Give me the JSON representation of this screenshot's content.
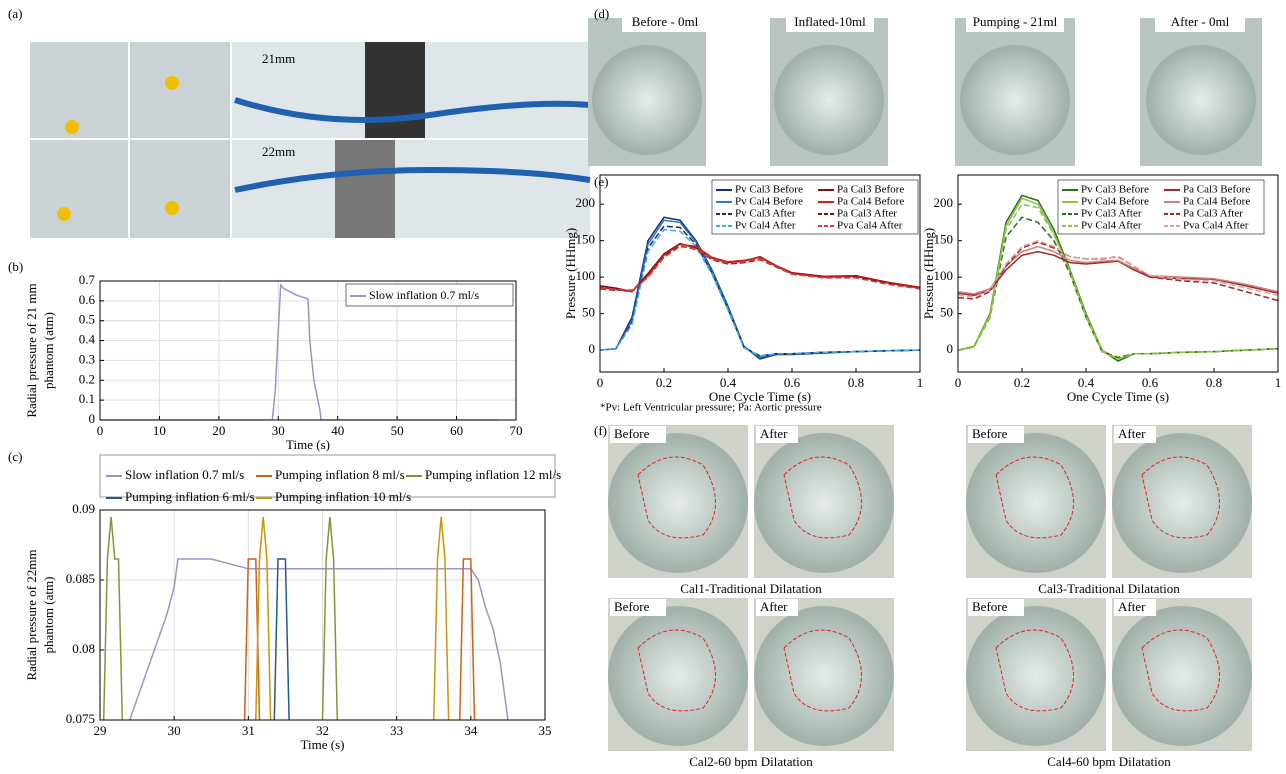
{
  "panel_labels": [
    "(a)",
    "(b)",
    "(c)",
    "(d)",
    "(e)",
    "(f)"
  ],
  "panel_a": {
    "labels": [
      "21mm",
      "22mm"
    ]
  },
  "panel_d": {
    "photo_labels": [
      "Before - 0ml",
      "Inflated-10ml",
      "Pumping - 21ml",
      "After - 0ml"
    ]
  },
  "panel_f": {
    "photo_labels": [
      "Before",
      "After"
    ],
    "captions": [
      "Cal1-Traditional Dilatation",
      "Cal3-Traditional Dilatation",
      "Cal2-60 bpm Dilatation",
      "Cal4-60 bpm Dilatation"
    ]
  },
  "footnote": "*Pv: Left Ventricular pressure; Pa: Aortic pressure",
  "chart_data": [
    {
      "type": "line",
      "xlabel": "Time (s)",
      "ylabel": [
        "Radial pressure of 21 mm",
        "phantom (atm)"
      ],
      "xlim": [
        0,
        70
      ],
      "xticks": [
        0,
        10,
        20,
        30,
        40,
        50,
        60,
        70
      ],
      "ylim": [
        0,
        0.7
      ],
      "yticks": [
        0,
        0.1,
        0.2,
        0.3,
        0.4,
        0.5,
        0.6,
        0.7
      ],
      "grid": true,
      "legend": "upper right",
      "legend_columns": 1,
      "series": [
        {
          "name": "Slow inflation 0.7 ml/s",
          "color": "#a48fcc",
          "x": [
            0,
            29,
            29.5,
            30,
            30.4,
            31,
            33,
            35,
            35.3,
            36,
            37,
            37.2,
            67
          ],
          "values": [
            0,
            0,
            0.15,
            0.45,
            0.68,
            0.66,
            0.63,
            0.61,
            0.4,
            0.2,
            0.05,
            0,
            0
          ]
        }
      ]
    },
    {
      "type": "line",
      "xlabel": "Time (s)",
      "ylabel": [
        "Radial pressure of 22mm",
        "phantom (atm)"
      ],
      "xlim": [
        29,
        35
      ],
      "xticks": [
        29,
        30,
        31,
        32,
        33,
        34,
        35
      ],
      "ylim": [
        0.075,
        0.09
      ],
      "yticks": [
        0.075,
        0.08,
        0.085,
        0.09
      ],
      "grid": true,
      "legend": "top",
      "legend_columns": 3,
      "series": [
        {
          "name": "Slow inflation 0.7 ml/s",
          "color": "#a48fcc",
          "x": [
            29.4,
            29.5,
            29.6,
            29.7,
            29.8,
            29.9,
            30,
            30.05,
            30.5,
            31,
            31.5,
            32,
            33,
            34,
            34.1,
            34.2,
            34.3,
            34.4,
            34.5
          ],
          "values": [
            0.075,
            0.0765,
            0.078,
            0.0795,
            0.081,
            0.0825,
            0.0845,
            0.0865,
            0.0865,
            0.0858,
            0.0858,
            0.0858,
            0.0858,
            0.0858,
            0.085,
            0.083,
            0.0815,
            0.079,
            0.075
          ]
        },
        {
          "name": "Pumping inflation 8 ml/s",
          "color": "#c8641e",
          "x": [
            30.95,
            31,
            31.05,
            31.1,
            31.15,
            null,
            33.85,
            33.9,
            33.95,
            34,
            34.05
          ],
          "values": [
            0.075,
            0.0865,
            0.0865,
            0.0865,
            0.075,
            null,
            0.075,
            0.0865,
            0.0865,
            0.0865,
            0.075
          ]
        },
        {
          "name": "Pumping inflation 12 ml/s",
          "color": "#7a9a3a",
          "x": [
            29.05,
            29.1,
            29.15,
            29.2,
            29.25,
            29.3,
            null,
            32,
            32.05,
            32.1,
            32.15,
            32.2
          ],
          "values": [
            0.075,
            0.0865,
            0.0895,
            0.0865,
            0.0865,
            0.075,
            null,
            0.075,
            0.0865,
            0.0895,
            0.0865,
            0.075
          ]
        },
        {
          "name": "Pumping inflation 6 ml/s",
          "color": "#1f5f80",
          "x": [
            31.35,
            31.4,
            31.45,
            31.5,
            31.55
          ],
          "values": [
            0.075,
            0.0865,
            0.0865,
            0.0865,
            0.075
          ]
        },
        {
          "name": "Pumping inflation 10 ml/s",
          "color": "#c8960a",
          "x": [
            31.1,
            31.15,
            31.2,
            31.25,
            31.3,
            null,
            33.5,
            33.55,
            33.6,
            33.65,
            33.7
          ],
          "values": [
            0.075,
            0.0865,
            0.0895,
            0.0865,
            0.075,
            null,
            0.075,
            0.0865,
            0.0895,
            0.0865,
            0.075
          ]
        }
      ]
    },
    {
      "type": "line",
      "xlabel": "One Cycle Time (s)",
      "ylabel": "Pressure (HHmg)",
      "xlim": [
        0,
        1
      ],
      "xticks": [
        0,
        0.2,
        0.4,
        0.6,
        0.8,
        1
      ],
      "ylim": [
        -30,
        240
      ],
      "yticks": [
        0,
        50,
        100,
        150,
        200
      ],
      "grid": false,
      "legend": "upper right",
      "legend_columns": 2,
      "x": [
        0,
        0.05,
        0.1,
        0.15,
        0.2,
        0.25,
        0.3,
        0.35,
        0.4,
        0.45,
        0.5,
        0.55,
        0.6,
        0.7,
        0.8,
        0.9,
        1
      ],
      "series": [
        {
          "name": "Pv Cal3 Before",
          "color": "#1a2a6c",
          "dash": false,
          "values": [
            0,
            2,
            45,
            150,
            182,
            178,
            150,
            110,
            60,
            5,
            -12,
            -6,
            -6,
            -4,
            -2,
            -1,
            0
          ]
        },
        {
          "name": "Pv Cal4 Before",
          "color": "#2a7ad0",
          "dash": false,
          "values": [
            0,
            2,
            40,
            145,
            178,
            175,
            148,
            108,
            58,
            4,
            -10,
            -5,
            -5,
            -3,
            -2,
            -1,
            0
          ]
        },
        {
          "name": "Pv Cal3 After",
          "color": "#1a2a6c",
          "dash": true,
          "values": [
            0,
            2,
            38,
            140,
            170,
            168,
            145,
            106,
            56,
            4,
            -8,
            -5,
            -5,
            -3,
            -2,
            -1,
            0
          ]
        },
        {
          "name": "Pv Cal4 After",
          "color": "#3ab0e0",
          "dash": true,
          "values": [
            0,
            2,
            35,
            135,
            165,
            163,
            142,
            104,
            55,
            3,
            -8,
            -5,
            -5,
            -3,
            -2,
            -1,
            0
          ]
        },
        {
          "name": "Pa Cal3 Before",
          "color": "#7a1010",
          "dash": false,
          "values": [
            88,
            85,
            80,
            105,
            132,
            146,
            140,
            126,
            120,
            122,
            128,
            116,
            106,
            101,
            102,
            93,
            86
          ]
        },
        {
          "name": "Pa Cal4 Before",
          "color": "#d02020",
          "dash": false,
          "values": [
            86,
            83,
            80,
            102,
            130,
            145,
            142,
            127,
            121,
            123,
            127,
            115,
            105,
            100,
            101,
            92,
            85
          ]
        },
        {
          "name": "Pa Cal3 After",
          "color": "#7a1010",
          "dash": true,
          "values": [
            84,
            82,
            82,
            100,
            128,
            143,
            138,
            124,
            118,
            120,
            124,
            114,
            104,
            99,
            100,
            91,
            84
          ]
        },
        {
          "name": "Pva Cal4 After",
          "color": "#d84040",
          "dash": true,
          "values": [
            85,
            83,
            81,
            100,
            127,
            142,
            139,
            125,
            119,
            121,
            125,
            115,
            104,
            99,
            99,
            90,
            84
          ]
        }
      ]
    },
    {
      "type": "line",
      "xlabel": "One Cycle Time (s)",
      "ylabel": "Pressure (HHmg)",
      "xlim": [
        0,
        1
      ],
      "xticks": [
        0,
        0.2,
        0.4,
        0.6,
        0.8,
        1
      ],
      "ylim": [
        -30,
        240
      ],
      "yticks": [
        0,
        50,
        100,
        150,
        200
      ],
      "grid": false,
      "legend": "upper right",
      "legend_columns": 2,
      "x": [
        0,
        0.05,
        0.1,
        0.15,
        0.2,
        0.25,
        0.3,
        0.35,
        0.4,
        0.45,
        0.5,
        0.55,
        0.6,
        0.7,
        0.8,
        0.9,
        1
      ],
      "series": [
        {
          "name": "Pv Cal3 Before",
          "color": "#2e6b1e",
          "dash": false,
          "values": [
            0,
            5,
            50,
            175,
            212,
            205,
            165,
            110,
            50,
            0,
            -15,
            -5,
            -5,
            -3,
            -2,
            0,
            2
          ]
        },
        {
          "name": "Pv Cal4 Before",
          "color": "#8cc63f",
          "dash": false,
          "values": [
            0,
            5,
            48,
            170,
            208,
            200,
            160,
            108,
            48,
            0,
            -12,
            -5,
            -5,
            -3,
            -2,
            0,
            2
          ]
        },
        {
          "name": "Pv Cal3 After",
          "color": "#2e6b1e",
          "dash": true,
          "values": [
            0,
            4,
            45,
            155,
            182,
            175,
            150,
            105,
            45,
            -2,
            -10,
            -5,
            -5,
            -3,
            -2,
            0,
            2
          ]
        },
        {
          "name": "Pv Cal4 After",
          "color": "#8cc63f",
          "dash": true,
          "values": [
            0,
            4,
            46,
            165,
            200,
            195,
            158,
            108,
            46,
            -2,
            -12,
            -5,
            -5,
            -3,
            -2,
            0,
            2
          ]
        },
        {
          "name": "Pa Cal3 Before",
          "color": "#a02828",
          "dash": false,
          "values": [
            78,
            75,
            82,
            110,
            130,
            135,
            130,
            120,
            118,
            120,
            122,
            110,
            100,
            98,
            97,
            88,
            78
          ]
        },
        {
          "name": "Pa Cal4 Before",
          "color": "#d08080",
          "dash": false,
          "values": [
            80,
            77,
            84,
            115,
            135,
            142,
            135,
            123,
            120,
            122,
            123,
            112,
            102,
            100,
            98,
            90,
            80
          ]
        },
        {
          "name": "Pa Cal3 After",
          "color": "#a02828",
          "dash": true,
          "values": [
            72,
            70,
            80,
            115,
            140,
            148,
            140,
            128,
            125,
            125,
            128,
            115,
            100,
            95,
            92,
            80,
            68
          ]
        },
        {
          "name": "Pva Cal4 After",
          "color": "#e0a0a0",
          "dash": true,
          "values": [
            75,
            73,
            82,
            118,
            142,
            150,
            142,
            128,
            125,
            126,
            127,
            115,
            102,
            97,
            95,
            85,
            75
          ]
        }
      ]
    }
  ]
}
